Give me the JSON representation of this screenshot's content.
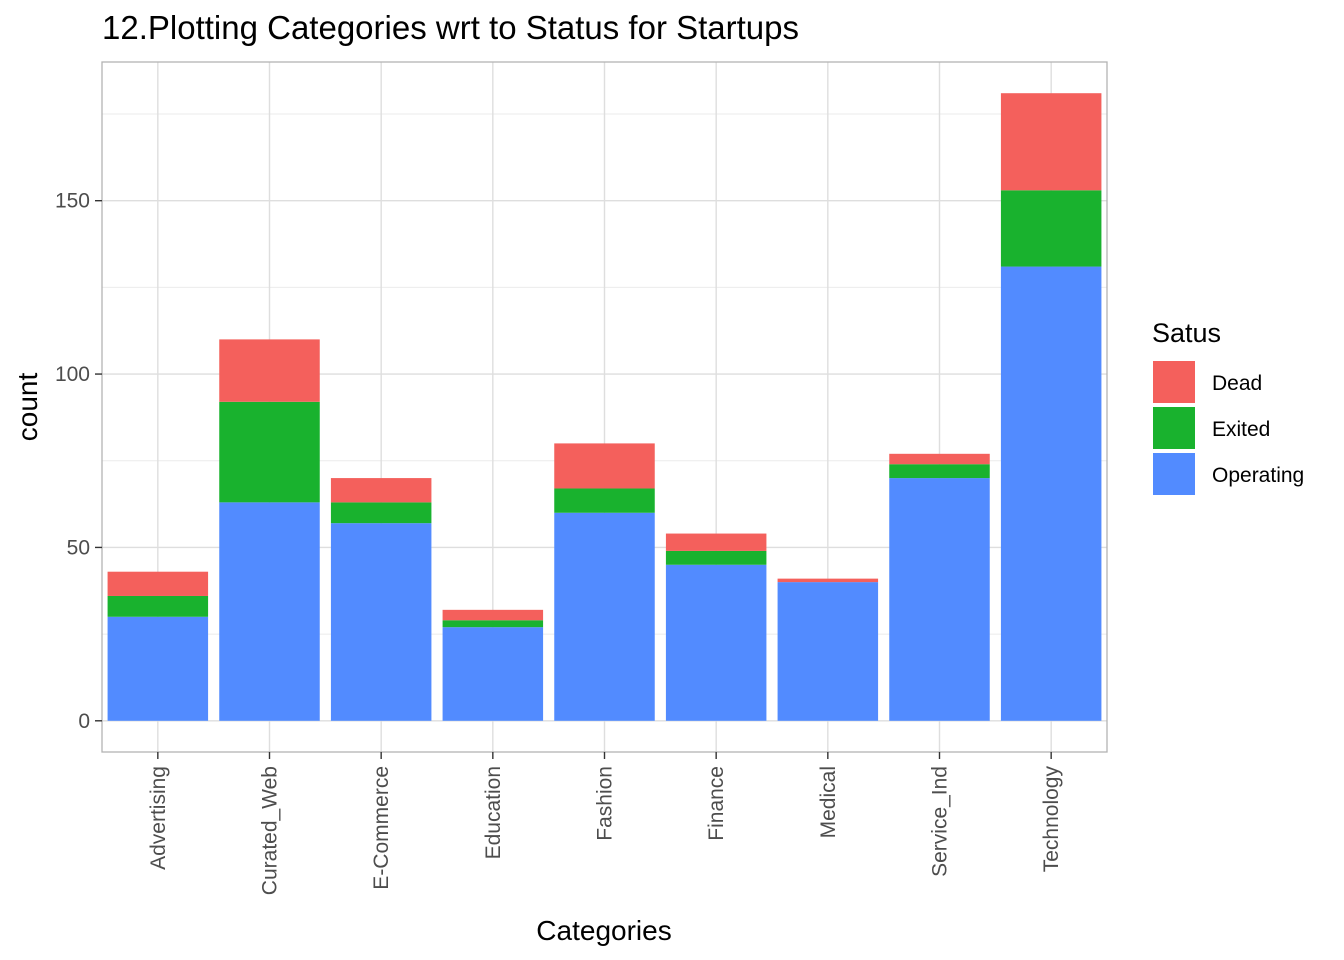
{
  "chart_data": {
    "type": "bar",
    "stacked": true,
    "title": "12.Plotting Categories wrt to Status for Startups",
    "xlabel": "Categories",
    "ylabel": "count",
    "categories": [
      "Advertising",
      "Curated_Web",
      "E-Commerce",
      "Education",
      "Fashion",
      "Finance",
      "Medical",
      "Service_Ind",
      "Technology"
    ],
    "series": [
      {
        "name": "Operating",
        "color": "#528bff",
        "values": [
          30,
          63,
          57,
          27,
          60,
          45,
          40,
          70,
          131
        ]
      },
      {
        "name": "Exited",
        "color": "#19b22e",
        "values": [
          6,
          29,
          6,
          2,
          7,
          4,
          0,
          4,
          22
        ]
      },
      {
        "name": "Dead",
        "color": "#f4605c",
        "values": [
          7,
          18,
          7,
          3,
          13,
          5,
          1,
          3,
          28
        ]
      }
    ],
    "ylim": [
      -9,
      190
    ],
    "yticks": [
      0,
      50,
      100,
      150
    ],
    "grid": true,
    "legend": {
      "title": "Satus",
      "position": "right",
      "entries": [
        "Dead",
        "Exited",
        "Operating"
      ]
    }
  }
}
